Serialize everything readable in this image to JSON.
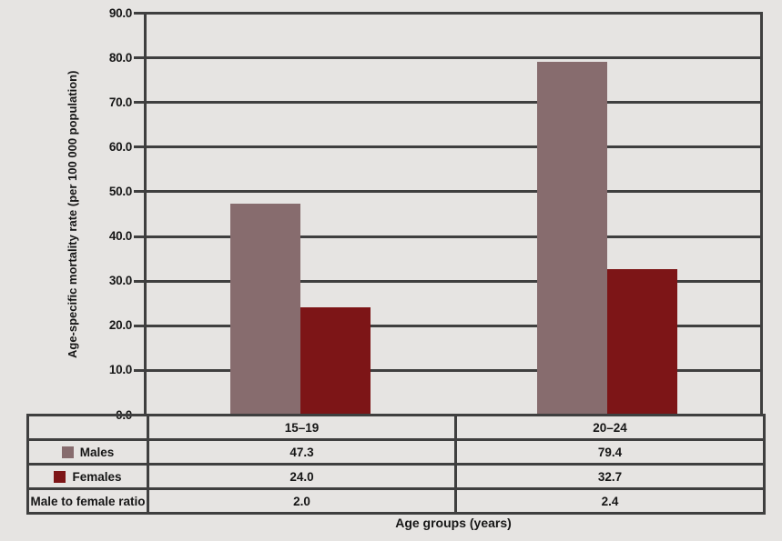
{
  "axes": {
    "y_label": "Age-specific mortality rate (per 100 000 population)",
    "x_label": "Age groups (years)"
  },
  "chart_data": {
    "type": "bar",
    "title": "",
    "categories": [
      "15–19",
      "20–24"
    ],
    "series": [
      {
        "name": "Males",
        "color": "#876c6e",
        "values": [
          47.3,
          79.4
        ]
      },
      {
        "name": "Females",
        "color": "#7d1517",
        "values": [
          24.0,
          32.7
        ]
      }
    ],
    "xlabel": "Age groups (years)",
    "ylabel": "Age-specific mortality rate (per 100 000 population)",
    "ylim": [
      0,
      90
    ],
    "ytick_step": 10,
    "ytick_decimals": 1,
    "grid": true,
    "legend_position": "table-left",
    "colors": {
      "background": "#e6e4e2",
      "grid": "#3f3f3f",
      "text": "#161616"
    }
  },
  "table": {
    "categories": [
      "15–19",
      "20–24"
    ],
    "rows": [
      {
        "label": "Males",
        "values": [
          "47.3",
          "79.4"
        ]
      },
      {
        "label": "Females",
        "values": [
          "24.0",
          "32.7"
        ]
      },
      {
        "label": "Male to female ratio",
        "values": [
          "2.0",
          "2.4"
        ]
      }
    ]
  }
}
